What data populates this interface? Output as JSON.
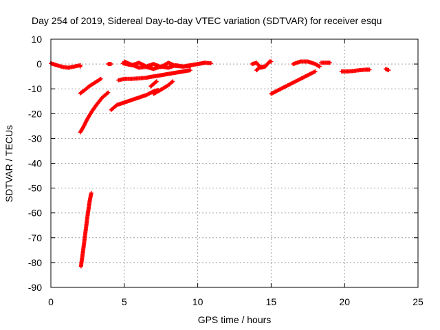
{
  "chart_data": {
    "type": "scatter",
    "title": "Day 254 of 2019, Sidereal Day-to-day VTEC variation (SDTVAR) for receiver esqu",
    "xlabel": "GPS time / hours",
    "ylabel": "SDTVAR / TECUs",
    "xlim": [
      0,
      25
    ],
    "ylim": [
      -90,
      10
    ],
    "xticks": [
      0,
      5,
      10,
      15,
      20,
      25
    ],
    "yticks": [
      10,
      0,
      -10,
      -20,
      -30,
      -40,
      -50,
      -60,
      -70,
      -80,
      -90
    ],
    "grid": true,
    "marker": "plus",
    "color": "#ff0000",
    "segments": [
      [
        [
          0.0,
          0.3
        ],
        [
          0.4,
          -0.5
        ],
        [
          0.8,
          -1.2
        ],
        [
          1.2,
          -1.5
        ],
        [
          1.6,
          -1.0
        ],
        [
          2.0,
          -0.5
        ],
        [
          2.0,
          -1.0
        ]
      ],
      [
        [
          3.9,
          0.0
        ],
        [
          4.1,
          0.0
        ]
      ],
      [
        [
          4.9,
          0.3
        ],
        [
          5.5,
          -0.5
        ],
        [
          6.0,
          0.5
        ],
        [
          6.5,
          -1.0
        ],
        [
          7.0,
          0.0
        ],
        [
          7.5,
          -1.2
        ],
        [
          8.0,
          0.5
        ],
        [
          8.5,
          -0.8
        ],
        [
          9.0,
          -1.0
        ],
        [
          9.5,
          -0.5
        ],
        [
          10.0,
          0.0
        ],
        [
          10.5,
          0.5
        ],
        [
          10.9,
          0.3
        ]
      ],
      [
        [
          5.0,
          1.0
        ],
        [
          5.5,
          -0.3
        ],
        [
          6.0,
          -1.5
        ],
        [
          6.5,
          -1.2
        ],
        [
          7.0,
          -2.0
        ],
        [
          7.5,
          -1.0
        ],
        [
          8.0,
          -1.5
        ],
        [
          8.5,
          -0.5
        ],
        [
          9.0,
          -1.0
        ],
        [
          9.5,
          -0.8
        ]
      ],
      [
        [
          2.0,
          -11.8
        ],
        [
          2.3,
          -10.5
        ],
        [
          2.6,
          -9.0
        ],
        [
          3.0,
          -7.5
        ],
        [
          3.4,
          -6.0
        ]
      ],
      [
        [
          2.0,
          -27.5
        ],
        [
          2.2,
          -25.5
        ],
        [
          2.5,
          -22.0
        ],
        [
          2.8,
          -19.0
        ],
        [
          3.1,
          -16.5
        ],
        [
          3.5,
          -13.5
        ],
        [
          3.9,
          -11.5
        ]
      ],
      [
        [
          2.05,
          -81.5
        ],
        [
          2.2,
          -75.0
        ],
        [
          2.35,
          -68.0
        ],
        [
          2.5,
          -61.0
        ],
        [
          2.65,
          -55.0
        ],
        [
          2.75,
          -52.0
        ]
      ],
      [
        [
          4.1,
          -18.5
        ],
        [
          4.5,
          -16.5
        ],
        [
          5.0,
          -15.5
        ],
        [
          5.5,
          -14.5
        ],
        [
          6.0,
          -13.5
        ],
        [
          6.5,
          -12.5
        ],
        [
          7.0,
          -11.0
        ],
        [
          7.3,
          -10.5
        ]
      ],
      [
        [
          4.6,
          -6.5
        ],
        [
          5.0,
          -6.0
        ],
        [
          5.5,
          -6.0
        ],
        [
          6.0,
          -5.8
        ],
        [
          6.5,
          -5.5
        ],
        [
          7.0,
          -5.0
        ],
        [
          7.5,
          -4.5
        ],
        [
          8.0,
          -4.0
        ],
        [
          8.5,
          -3.5
        ],
        [
          9.0,
          -3.0
        ],
        [
          9.5,
          -2.5
        ]
      ],
      [
        [
          7.0,
          -12.0
        ],
        [
          7.3,
          -11.0
        ],
        [
          7.6,
          -10.0
        ],
        [
          8.0,
          -8.5
        ],
        [
          8.3,
          -7.0
        ]
      ],
      [
        [
          6.8,
          -9.0
        ],
        [
          7.0,
          -8.0
        ],
        [
          7.2,
          -7.0
        ]
      ],
      [
        [
          13.7,
          0.0
        ],
        [
          14.0,
          0.5
        ],
        [
          14.3,
          -1.5
        ],
        [
          14.6,
          -1.0
        ],
        [
          14.9,
          1.0
        ],
        [
          15.0,
          1.0
        ]
      ],
      [
        [
          14.0,
          -2.5
        ],
        [
          14.2,
          -1.5
        ],
        [
          14.5,
          -1.0
        ]
      ],
      [
        [
          15.0,
          -12.0
        ],
        [
          15.5,
          -10.5
        ],
        [
          16.0,
          -9.0
        ],
        [
          16.5,
          -7.5
        ],
        [
          17.0,
          -6.0
        ],
        [
          17.5,
          -4.5
        ],
        [
          18.0,
          -3.0
        ]
      ],
      [
        [
          16.5,
          0.0
        ],
        [
          17.0,
          1.0
        ],
        [
          17.5,
          1.0
        ],
        [
          18.0,
          0.0
        ],
        [
          18.3,
          -1.0
        ]
      ],
      [
        [
          18.4,
          0.5
        ],
        [
          18.8,
          0.5
        ],
        [
          19.0,
          0.5
        ]
      ],
      [
        [
          19.8,
          -3.0
        ],
        [
          20.2,
          -3.0
        ],
        [
          20.6,
          -2.8
        ],
        [
          21.0,
          -2.5
        ],
        [
          21.4,
          -2.3
        ],
        [
          21.7,
          -2.3
        ]
      ],
      [
        [
          22.8,
          -2.0
        ],
        [
          23.0,
          -2.5
        ]
      ]
    ]
  }
}
